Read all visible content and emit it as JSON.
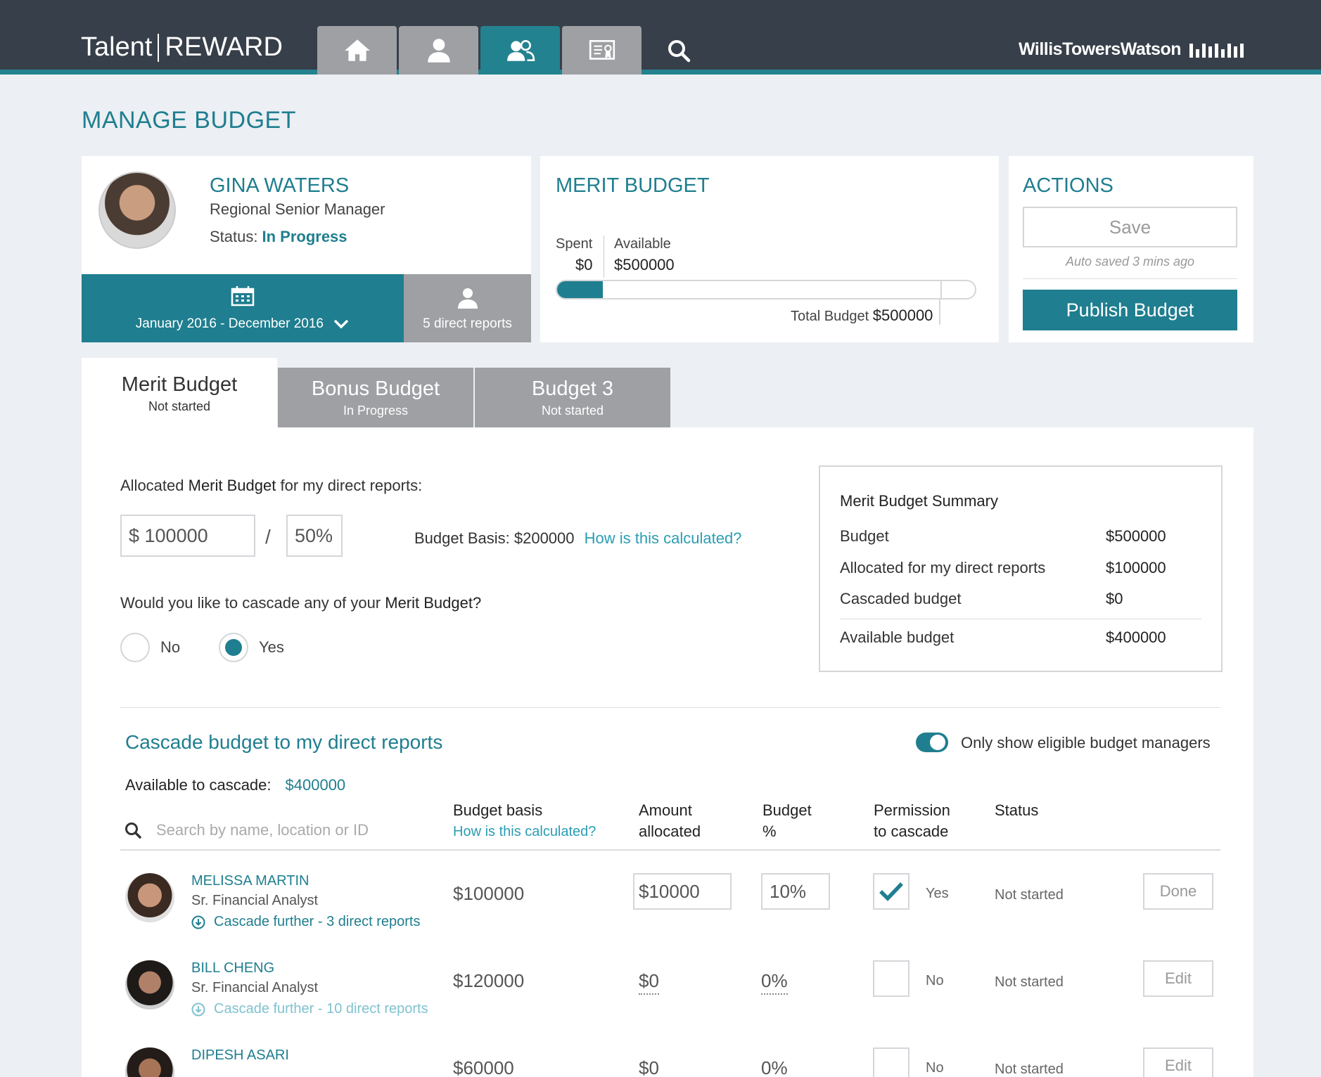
{
  "brand": {
    "left": "Talent",
    "right": "REWARD"
  },
  "partner": "WillisTowersWatson",
  "nav": {
    "tabs": [
      "home",
      "profile",
      "team",
      "certificate"
    ],
    "active": "team"
  },
  "page_title": "MANAGE BUDGET",
  "profile": {
    "name": "GINA WATERS",
    "role": "Regional Senior Manager",
    "status_label": "Status:",
    "status_value": "In Progress",
    "period": "January 2016 - December 2016",
    "direct_reports": "5 direct reports"
  },
  "merit_card": {
    "title": "MERIT BUDGET",
    "spent_label": "Spent",
    "spent_value": "$0",
    "available_label": "Available",
    "available_value": "$500000",
    "total_label": "Total Budget",
    "total_value": "$500000",
    "progress_fraction": 0.11
  },
  "actions": {
    "title": "ACTIONS",
    "save": "Save",
    "autosave": "Auto saved 3 mins ago",
    "publish": "Publish Budget"
  },
  "tabs": [
    {
      "label": "Merit Budget",
      "status": "Not started"
    },
    {
      "label": "Bonus Budget",
      "status": "In Progress"
    },
    {
      "label": "Budget 3",
      "status": "Not started"
    }
  ],
  "allocation": {
    "label_pre": "Allocated ",
    "label_bold": "Merit Budget",
    "label_post": " for my direct reports:",
    "amount": "$ 100000",
    "percent": "50%",
    "slash": "/",
    "basis": "Budget Basis: $200000",
    "basis_link": "How is this calculated?",
    "cascade_q_pre": "Would you like to cascade any of your ",
    "cascade_q_bold": "Merit Budget?",
    "no": "No",
    "yes": "Yes",
    "selected": "Yes"
  },
  "summary": {
    "title": "Merit Budget Summary",
    "rows": [
      {
        "label": "Budget",
        "value": "$500000"
      },
      {
        "label": "Allocated for my direct reports",
        "value": "$100000"
      },
      {
        "label": "Cascaded budget",
        "value": "$0"
      },
      {
        "label": "Available budget",
        "value": "$400000"
      }
    ]
  },
  "cascade": {
    "title": "Cascade budget to my direct reports",
    "toggle_label": "Only show eligible budget managers",
    "toggle_on": true,
    "available_label": "Available to cascade:",
    "available_value": "$400000",
    "search_placeholder": "Search by name, location or ID",
    "headers": {
      "basis": "Budget basis",
      "basis_link": "How is this calculated?",
      "amount_1": "Amount",
      "amount_2": "allocated",
      "pct_1": "Budget",
      "pct_2": "%",
      "perm_1": "Permission",
      "perm_2": "to cascade",
      "status": "Status"
    },
    "rows": [
      {
        "name": "MELISSA MARTIN",
        "role": "Sr. Financial Analyst",
        "cascade": "Cascade further - 3 direct reports",
        "basis": "$100000",
        "amount": "$10000",
        "percent": "10%",
        "permission": "Yes",
        "checked": true,
        "status": "Not started",
        "action": "Done"
      },
      {
        "name": "BILL CHENG",
        "role": "Sr. Financial Analyst",
        "cascade": "Cascade further - 10 direct reports",
        "basis": "$120000",
        "amount": "$0",
        "percent": "0%",
        "permission": "No",
        "checked": false,
        "status": "Not started",
        "action": "Edit"
      },
      {
        "name": "DIPESH ASARI",
        "role": "",
        "cascade": "",
        "basis": "$60000",
        "amount": "$0",
        "percent": "0%",
        "permission": "No",
        "checked": false,
        "status": "Not started",
        "action": "Edit"
      }
    ]
  },
  "colors": {
    "accent": "#1f7e8f",
    "topbar": "#373f4a",
    "tab_grey": "#9ea0a3",
    "link": "#2a9db3",
    "background": "#eceff3"
  }
}
